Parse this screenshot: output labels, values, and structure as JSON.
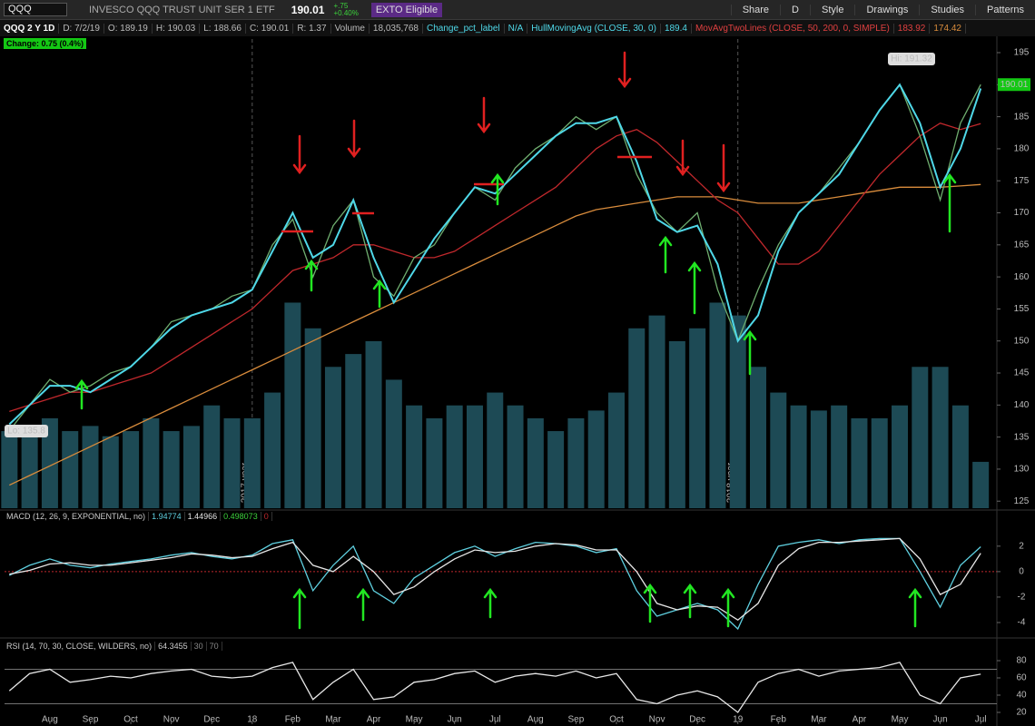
{
  "toolbar": {
    "symbol": "QQQ",
    "description": "INVESCO QQQ TRUST UNIT SER 1 ETF",
    "last": "190.01",
    "change": "+.75",
    "change_pct": "+0.40%",
    "badge": "EXTO Eligible",
    "buttons": [
      "Share",
      "D",
      "Style",
      "Drawings",
      "Studies",
      "Patterns"
    ]
  },
  "legend": {
    "items": [
      "QQQ 2 Y 1D",
      "D: 7/2/19",
      "O: 189.19",
      "H: 190.03",
      "L: 188.66",
      "C: 190.01",
      "R: 1.37"
    ],
    "volume_label": "Volume",
    "volume": "18,035,768",
    "change_label": "Change_pct_label",
    "change_value": "N/A",
    "hull_label": "HullMovingAvg (CLOSE, 30, 0)",
    "hull_value": "189.4",
    "ma_label": "MovAvgTwoLines (CLOSE, 50, 200, 0, SIMPLE)",
    "ma50_value": "183.92",
    "ma200_value": "174.42",
    "change_badge": "Change: 0.75 (0.4%)"
  },
  "chart_data": [
    {
      "type": "line",
      "x": [
        -1,
        -0.5,
        0,
        0.5,
        1,
        1.5,
        2,
        2.5,
        3,
        3.5,
        4,
        4.5,
        5,
        5.5,
        6,
        6.5,
        7,
        7.5,
        8,
        8.5,
        9,
        9.5,
        10,
        10.5,
        11,
        11.5,
        12,
        12.5,
        13,
        13.5,
        14,
        14.5,
        15,
        15.5,
        16,
        16.5,
        17,
        17.5,
        18,
        18.5,
        19,
        19.5,
        20,
        20.5,
        21,
        21.5,
        22,
        22.5,
        23
      ],
      "xlim": [
        -1.12,
        23.4
      ],
      "ylim": [
        123.9,
        200.1
      ],
      "yticks": [
        125,
        130,
        135,
        140,
        145,
        150,
        155,
        160,
        165,
        170,
        175,
        180,
        185,
        190,
        195
      ],
      "y2lim": [
        0,
        190
      ],
      "series": [
        {
          "name": "Volume",
          "type": "bar",
          "axis": "y2",
          "color": "#1d4a55",
          "values": [
            30,
            28,
            35,
            30,
            32,
            28,
            30,
            35,
            30,
            32,
            40,
            35,
            35,
            45,
            80,
            70,
            55,
            60,
            65,
            50,
            40,
            35,
            40,
            40,
            45,
            40,
            35,
            30,
            35,
            38,
            45,
            70,
            75,
            65,
            70,
            80,
            75,
            55,
            45,
            40,
            38,
            40,
            35,
            35,
            40,
            55,
            55,
            40,
            18.04
          ]
        },
        {
          "name": "MA200",
          "color": "#d98c3c",
          "values": [
            127.5,
            129,
            130.5,
            132,
            133.5,
            135,
            136.5,
            138,
            139.5,
            141,
            142.5,
            144,
            145.5,
            147,
            148.5,
            150,
            151.5,
            153,
            154.5,
            156,
            157.5,
            159,
            160.5,
            162,
            163.5,
            165,
            166.5,
            168,
            169.5,
            170.5,
            171,
            171.5,
            172,
            172.5,
            172.5,
            172.5,
            172,
            171.5,
            171.5,
            171.5,
            172,
            172.5,
            173,
            173.5,
            174,
            174,
            174,
            174.2,
            174.42
          ]
        },
        {
          "name": "MA50",
          "color": "#c0282c",
          "values": [
            139,
            140,
            141,
            142,
            142,
            143,
            144,
            145,
            147,
            149,
            151,
            153,
            155,
            158,
            161,
            162,
            163,
            165,
            165,
            164,
            163,
            163,
            164,
            166,
            168,
            170,
            172,
            174,
            177,
            180,
            182,
            183,
            181,
            178,
            175,
            172,
            170,
            166,
            162,
            162,
            164,
            168,
            172,
            176,
            179,
            182,
            184,
            183,
            183.92
          ]
        },
        {
          "name": "Close",
          "color": "#6fae6f",
          "values": [
            136,
            140,
            144,
            142,
            143,
            145,
            146,
            149,
            153,
            154,
            155,
            157,
            158,
            165,
            169,
            160,
            168,
            172,
            160,
            157,
            163,
            165,
            170,
            174,
            172,
            177,
            180,
            182,
            185,
            183,
            185,
            176,
            170,
            167,
            170,
            158,
            150,
            158,
            165,
            170,
            173,
            177,
            181,
            186,
            190,
            182,
            172,
            184,
            190.01
          ]
        },
        {
          "name": "Hull",
          "color": "#4fd8e8",
          "values": [
            137,
            140,
            143,
            143,
            142,
            144,
            146,
            149,
            152,
            154,
            155,
            156,
            158,
            164,
            170,
            163,
            165,
            172,
            163,
            156,
            161,
            166,
            170,
            174,
            173,
            176,
            179,
            182,
            184,
            184,
            185,
            178,
            169,
            167,
            168,
            162,
            150,
            154,
            164,
            170,
            173,
            176,
            181,
            186,
            190,
            184,
            174,
            180,
            189.4
          ]
        }
      ],
      "year_markers": [
        {
          "x": 5,
          "label": "2017 year"
        },
        {
          "x": 17,
          "label": "2018 year"
        }
      ],
      "hi_label": "Hi: 191.32",
      "lo_label": "Lo: 135.8",
      "price_tag": "190.01"
    },
    {
      "type": "line",
      "title": "MACD (12, 26, 9, EXPONENTIAL, no)",
      "readouts": [
        "1.94774",
        "1.44966",
        "0.498073",
        "0"
      ],
      "x": [
        -1,
        -0.5,
        0,
        0.5,
        1,
        1.5,
        2,
        2.5,
        3,
        3.5,
        4,
        4.5,
        5,
        5.5,
        6,
        6.5,
        7,
        7.5,
        8,
        8.5,
        9,
        9.5,
        10,
        10.5,
        11,
        11.5,
        12,
        12.5,
        13,
        13.5,
        14,
        14.5,
        15,
        15.5,
        16,
        16.5,
        17,
        17.5,
        18,
        18.5,
        19,
        19.5,
        20,
        20.5,
        21,
        21.5,
        22,
        22.5,
        23
      ],
      "xlim": [
        -1.12,
        23.4
      ],
      "ylim": [
        -5,
        3.7
      ],
      "yticks": [
        -4,
        -2,
        0,
        2
      ],
      "series": [
        {
          "name": "Value",
          "color": "#5fd0e0",
          "values": [
            -0.3,
            0.5,
            1,
            0.5,
            0.3,
            0.6,
            0.8,
            1,
            1.3,
            1.5,
            1.2,
            1.0,
            1.3,
            2.2,
            2.5,
            -1.5,
            0.5,
            2,
            -1.5,
            -2.5,
            -0.5,
            0.5,
            1.5,
            2,
            1.2,
            1.8,
            2.3,
            2.2,
            2.0,
            1.5,
            1.8,
            -1.5,
            -3.5,
            -3,
            -2.5,
            -3,
            -4.5,
            -1,
            2,
            2.3,
            2.5,
            2.2,
            2.5,
            2.6,
            2.6,
            0,
            -2.8,
            0.5,
            1.95
          ]
        },
        {
          "name": "Avg",
          "color": "#e6e6e6",
          "values": [
            -0.2,
            0.1,
            0.6,
            0.7,
            0.5,
            0.5,
            0.7,
            0.9,
            1.1,
            1.4,
            1.3,
            1.1,
            1.2,
            1.8,
            2.3,
            0.5,
            0,
            1.2,
            0,
            -1.8,
            -1.2,
            0,
            1,
            1.7,
            1.5,
            1.6,
            2.0,
            2.2,
            2.1,
            1.7,
            1.7,
            0,
            -2.5,
            -3,
            -2.7,
            -2.8,
            -3.8,
            -2.5,
            0.5,
            1.8,
            2.3,
            2.3,
            2.4,
            2.5,
            2.6,
            1,
            -1.8,
            -1,
            1.45
          ]
        }
      ]
    },
    {
      "type": "line",
      "title": "RSI (14, 70, 30, CLOSE, WILDERS, no)",
      "readouts": [
        "64.3455",
        "30",
        "70"
      ],
      "x": [
        -1,
        -0.5,
        0,
        0.5,
        1,
        1.5,
        2,
        2.5,
        3,
        3.5,
        4,
        4.5,
        5,
        5.5,
        6,
        6.5,
        7,
        7.5,
        8,
        8.5,
        9,
        9.5,
        10,
        10.5,
        11,
        11.5,
        12,
        12.5,
        13,
        13.5,
        14,
        14.5,
        15,
        15.5,
        16,
        16.5,
        17,
        17.5,
        18,
        18.5,
        19,
        19.5,
        20,
        20.5,
        21,
        21.5,
        22,
        22.5,
        23
      ],
      "xlim": [
        -1.12,
        23.4
      ],
      "ylim": [
        9.5,
        86.3
      ],
      "yticks": [
        20,
        40,
        60,
        80
      ],
      "reference_lines": [
        70,
        30
      ],
      "xticks": [
        {
          "value": 0,
          "label": "Aug"
        },
        {
          "value": 1,
          "label": "Sep"
        },
        {
          "value": 2,
          "label": "Oct"
        },
        {
          "value": 3,
          "label": "Nov"
        },
        {
          "value": 4,
          "label": "Dec"
        },
        {
          "value": 5,
          "label": "18"
        },
        {
          "value": 6,
          "label": "Feb"
        },
        {
          "value": 7,
          "label": "Mar"
        },
        {
          "value": 8,
          "label": "Apr"
        },
        {
          "value": 9,
          "label": "May"
        },
        {
          "value": 10,
          "label": "Jun"
        },
        {
          "value": 11,
          "label": "Jul"
        },
        {
          "value": 12,
          "label": "Aug"
        },
        {
          "value": 13,
          "label": "Sep"
        },
        {
          "value": 14,
          "label": "Oct"
        },
        {
          "value": 15,
          "label": "Nov"
        },
        {
          "value": 16,
          "label": "Dec"
        },
        {
          "value": 17,
          "label": "19"
        },
        {
          "value": 18,
          "label": "Feb"
        },
        {
          "value": 19,
          "label": "Mar"
        },
        {
          "value": 20,
          "label": "Apr"
        },
        {
          "value": 21,
          "label": "May"
        },
        {
          "value": 22,
          "label": "Jun"
        },
        {
          "value": 23,
          "label": "Jul"
        }
      ],
      "series": [
        {
          "name": "RSI",
          "color": "#e8e8e8",
          "values": [
            45,
            65,
            70,
            55,
            58,
            62,
            60,
            65,
            68,
            70,
            62,
            60,
            62,
            72,
            78,
            35,
            55,
            70,
            35,
            38,
            55,
            58,
            65,
            68,
            55,
            62,
            65,
            62,
            68,
            60,
            65,
            35,
            30,
            40,
            45,
            38,
            20,
            55,
            65,
            70,
            62,
            68,
            70,
            72,
            78,
            40,
            30,
            60,
            64.35
          ]
        }
      ]
    }
  ]
}
